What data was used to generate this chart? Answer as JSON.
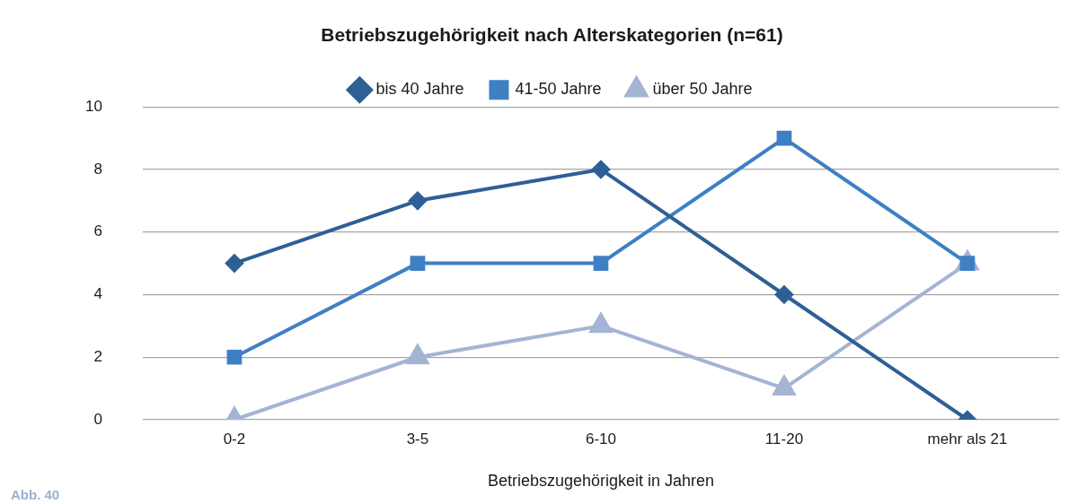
{
  "chart_data": {
    "type": "line",
    "title": "Betriebszugehörigkeit nach Alterskategorien (n=61)",
    "xlabel": "Betriebszugehörigkeit in Jahren",
    "categories": [
      "0-2",
      "3-5",
      "6-10",
      "11-20",
      "mehr als 21"
    ],
    "series": [
      {
        "name": "bis 40 Jahre",
        "color": "#2e5f95",
        "marker": "diamond",
        "values": [
          5,
          7,
          8,
          4,
          0
        ]
      },
      {
        "name": "41-50 Jahre",
        "color": "#3f7fc4",
        "marker": "square",
        "values": [
          2,
          5,
          5,
          9,
          5
        ]
      },
      {
        "name": "über 50 Jahre",
        "color": "#a3b4d4",
        "marker": "triangle",
        "values": [
          0,
          2,
          3,
          1,
          5
        ]
      }
    ],
    "ylim": [
      0,
      10
    ],
    "yticks": [
      0,
      2,
      4,
      6,
      8,
      10
    ],
    "grid": "y",
    "legend": "top",
    "line_style": "solid",
    "annotations": [
      "Abb. 40"
    ]
  }
}
